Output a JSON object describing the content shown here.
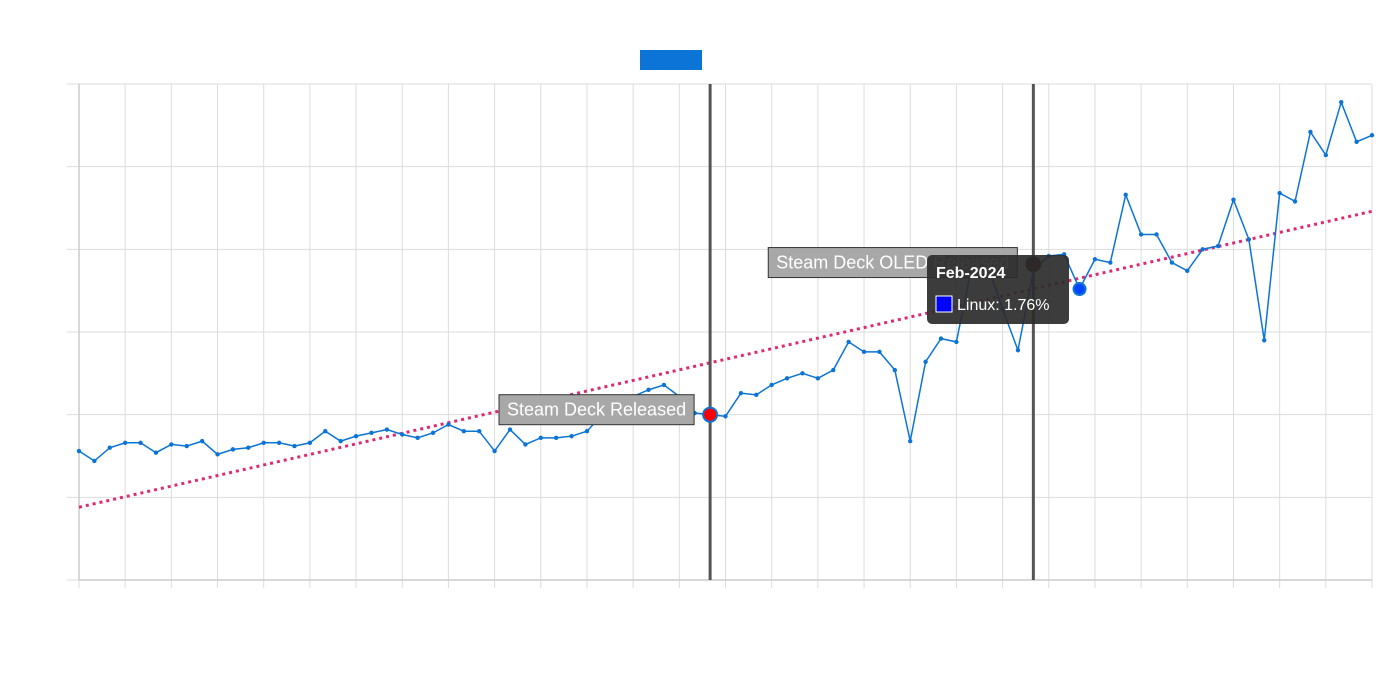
{
  "colors": {
    "series": "#0b74d6",
    "trend": "#dd2a72",
    "event_line": "#555555",
    "grid": "#dddddd",
    "highlight_event": "#ff0000",
    "highlight_oled": "#4a0000",
    "tooltip_bg": "#2b2b2b",
    "tooltip_swatch": "#0000ff",
    "label_bg": "#a8a8a8"
  },
  "legend": {
    "position": "top-center"
  },
  "tooltip": {
    "title": "Feb-2024",
    "series_name": "Linux",
    "value_text": "1.76%",
    "text": "Linux: 1.76%"
  },
  "chart_data": {
    "type": "line",
    "grid": true,
    "legend": "top-center",
    "xlim": [
      0,
      84
    ],
    "ylim": [
      0.0,
      3.0
    ],
    "series": [
      {
        "name": "Linux",
        "values": [
          0.78,
          0.72,
          0.8,
          0.83,
          0.83,
          0.77,
          0.82,
          0.81,
          0.84,
          0.76,
          0.79,
          0.8,
          0.83,
          0.83,
          0.81,
          0.83,
          0.9,
          0.84,
          0.87,
          0.89,
          0.91,
          0.88,
          0.86,
          0.89,
          0.94,
          0.9,
          0.9,
          0.78,
          0.91,
          0.82,
          0.86,
          0.86,
          0.87,
          0.9,
          1.0,
          1.07,
          1.11,
          1.15,
          1.18,
          1.11,
          1.01,
          1.0,
          0.99,
          1.13,
          1.12,
          1.18,
          1.22,
          1.25,
          1.22,
          1.27,
          1.44,
          1.38,
          1.38,
          1.27,
          0.84,
          1.32,
          1.46,
          1.44,
          1.9,
          1.91,
          1.64,
          1.39,
          1.87,
          1.96,
          1.97,
          1.76,
          1.94,
          1.92,
          2.33,
          2.09,
          2.09,
          1.92,
          1.87,
          2.0,
          2.02,
          2.3,
          2.06,
          1.45,
          2.34,
          2.29,
          2.71,
          2.57,
          2.89,
          2.65,
          2.69
        ]
      },
      {
        "name": "",
        "style": "dotted",
        "values_at_ends": [
          0.44,
          2.23
        ]
      }
    ],
    "annotations": [
      {
        "type": "vline",
        "x": 41,
        "label": "Steam Deck Released"
      },
      {
        "type": "vline",
        "x": 62,
        "label": "Steam Deck OLED Released"
      }
    ]
  }
}
